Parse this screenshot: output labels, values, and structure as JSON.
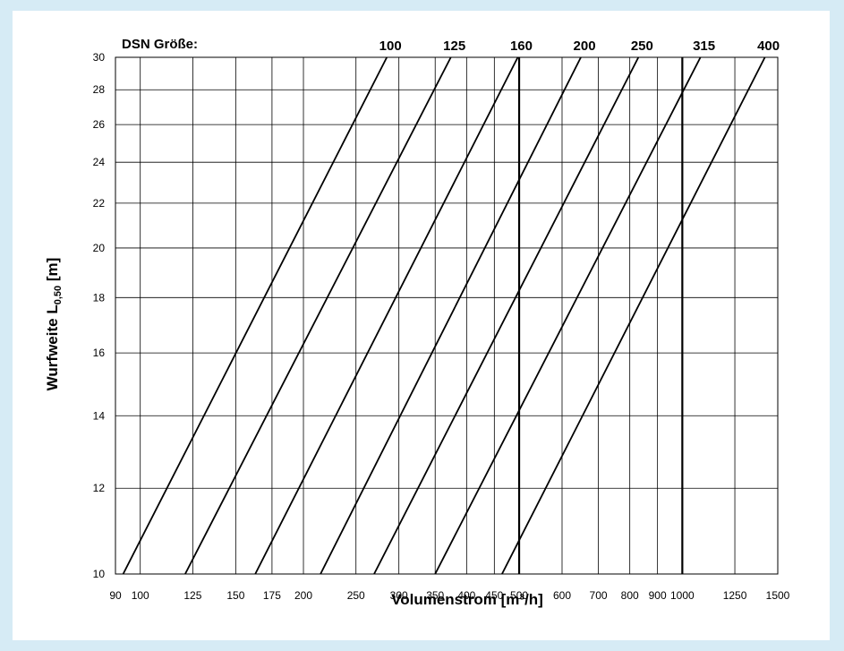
{
  "chart_data": {
    "type": "line",
    "title": "",
    "xlabel": "Volumenstrom [m³/h]",
    "ylabel_main": "Wurfweite L",
    "ylabel_sub": "0,50",
    "ylabel_unit": " [m]",
    "x_scale": "log",
    "y_scale": "log",
    "xlim": [
      90,
      1500
    ],
    "ylim": [
      10,
      30
    ],
    "grid": true,
    "x_ticks": [
      90,
      100,
      125,
      150,
      175,
      200,
      250,
      300,
      350,
      400,
      450,
      500,
      600,
      700,
      800,
      900,
      1000,
      1250,
      1500
    ],
    "x_tick_labels": [
      "90",
      "100",
      "125",
      "150",
      "175",
      "200",
      "250",
      "300",
      "350",
      "400",
      "450",
      "500",
      "600",
      "700",
      "800",
      "900",
      "1000",
      "1250",
      "1500"
    ],
    "y_ticks": [
      10,
      12,
      14,
      16,
      18,
      20,
      22,
      24,
      26,
      28,
      30
    ],
    "y_tick_labels": [
      "10",
      "12",
      "14",
      "16",
      "18",
      "20",
      "22",
      "24",
      "26",
      "28",
      "30"
    ],
    "legend_title": "DSN Größe:",
    "series": [
      {
        "name": "100",
        "x": [
          93,
          285
        ],
        "y": [
          10,
          30
        ]
      },
      {
        "name": "125",
        "x": [
          121,
          374
        ],
        "y": [
          10,
          30
        ]
      },
      {
        "name": "160",
        "x": [
          163,
          497
        ],
        "y": [
          10,
          30
        ]
      },
      {
        "name": "200",
        "x": [
          215,
          650
        ],
        "y": [
          10,
          30
        ]
      },
      {
        "name": "250",
        "x": [
          270,
          830
        ],
        "y": [
          10,
          30
        ]
      },
      {
        "name": "315",
        "x": [
          350,
          1080
        ],
        "y": [
          10,
          30
        ]
      },
      {
        "name": "400",
        "x": [
          465,
          1420
        ],
        "y": [
          10,
          30
        ]
      }
    ],
    "reference_lines_x": [
      500,
      1000
    ]
  }
}
